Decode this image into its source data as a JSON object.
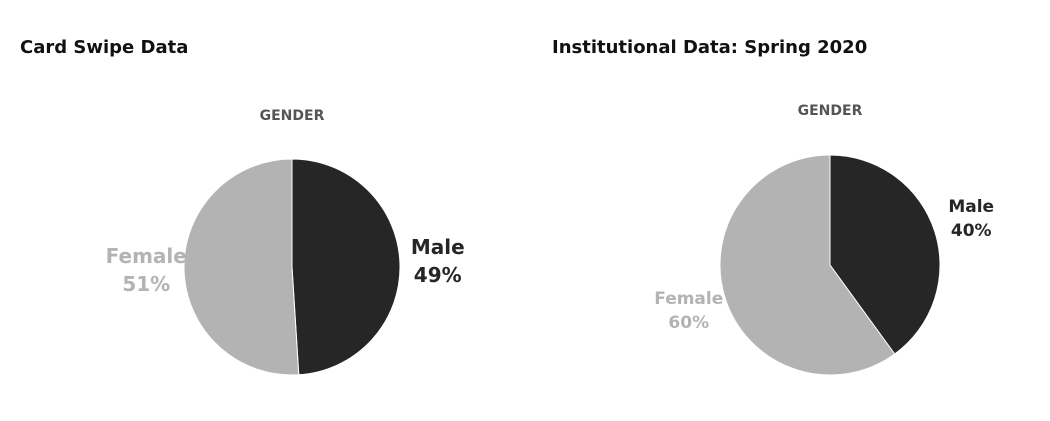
{
  "chart_data": [
    {
      "type": "pie",
      "title": "Card Swipe Data",
      "subtitle": "GENDER",
      "categories": [
        "Male",
        "Female"
      ],
      "values": [
        49,
        51
      ],
      "value_labels": [
        "49%",
        "51%"
      ],
      "colors": [
        "#262626",
        "#b3b3b3"
      ]
    },
    {
      "type": "pie",
      "title": "Institutional Data: Spring 2020",
      "subtitle": "GENDER",
      "categories": [
        "Male",
        "Female"
      ],
      "values": [
        40,
        60
      ],
      "value_labels": [
        "40%",
        "60%"
      ],
      "colors": [
        "#262626",
        "#b3b3b3"
      ]
    }
  ]
}
